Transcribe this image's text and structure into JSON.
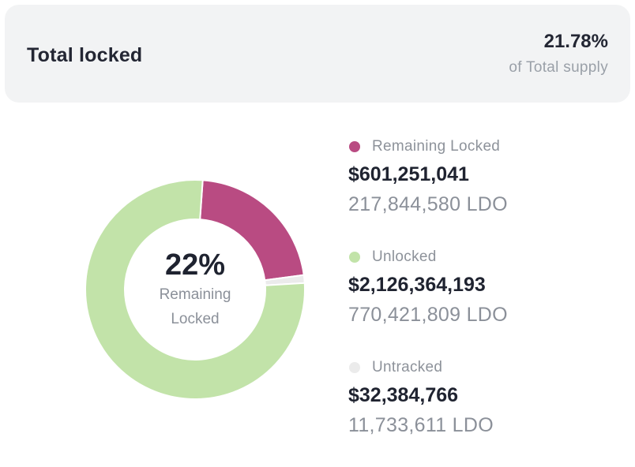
{
  "summary": {
    "title": "Total locked",
    "percent": "21.78%",
    "subtitle": "of Total supply"
  },
  "donut": {
    "center_percent": "22%",
    "center_label": "Remaining Locked",
    "segments": [
      {
        "name": "Remaining Locked",
        "fraction": 0.2178,
        "color": "#b94b82"
      },
      {
        "name": "Untracked",
        "fraction": 0.0117,
        "color": "#ebebeb"
      },
      {
        "name": "Unlocked",
        "fraction": 0.7705,
        "color": "#c2e3a9"
      }
    ]
  },
  "legend": [
    {
      "label": "Remaining Locked",
      "usd": "$601,251,041",
      "ldo": "217,844,580 LDO",
      "color": "#b94b82"
    },
    {
      "label": "Unlocked",
      "usd": "$2,126,364,193",
      "ldo": "770,421,809 LDO",
      "color": "#c2e3a9"
    },
    {
      "label": "Untracked",
      "usd": "$32,384,766",
      "ldo": "11,733,611 LDO",
      "color": "#ebebeb"
    }
  ]
}
